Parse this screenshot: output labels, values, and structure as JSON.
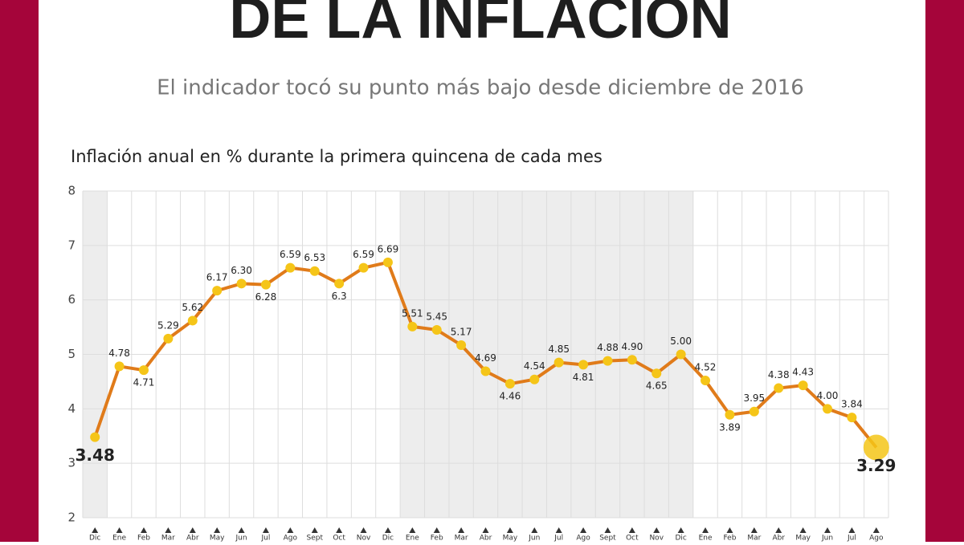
{
  "chart_data": {
    "type": "line",
    "title": "DE LA INFLACIÓN",
    "subtitle": "El indicador tocó su punto más bajo desde diciembre de 2016",
    "chart_title": "Inflación anual en % durante la primera quincena de cada mes",
    "categories": [
      "Dic",
      "Ene",
      "Feb",
      "Mar",
      "Abr",
      "May",
      "Jun",
      "Jul",
      "Ago",
      "Sept",
      "Oct",
      "Nov",
      "Dic",
      "Ene",
      "Feb",
      "Mar",
      "Abr",
      "May",
      "Jun",
      "Jul",
      "Ago",
      "Sept",
      "Oct",
      "Nov",
      "Dic",
      "Ene",
      "Feb",
      "Mar",
      "Abr",
      "May",
      "Jun",
      "Jul",
      "Ago"
    ],
    "values": [
      3.48,
      4.78,
      4.71,
      5.29,
      5.62,
      6.17,
      6.3,
      6.28,
      6.59,
      6.53,
      6.3,
      6.59,
      6.69,
      5.51,
      5.45,
      5.17,
      4.69,
      4.46,
      4.54,
      4.85,
      4.81,
      4.88,
      4.9,
      4.65,
      5.0,
      4.52,
      3.89,
      3.95,
      4.38,
      4.43,
      4.0,
      3.84,
      3.29
    ],
    "value_labels": [
      "3.48",
      "4.78",
      "4.71",
      "5.29",
      "5.62",
      "6.17",
      "6.30",
      "6.28",
      "6.59",
      "6.53",
      "6.3",
      "6.59",
      "6.69",
      "5.51",
      "5.45",
      "5.17",
      "4.69",
      "4.46",
      "4.54",
      "4.85",
      "4.81",
      "4.88",
      "4.90",
      "4.65",
      "5.00",
      "4.52",
      "3.89",
      "3.95",
      "4.38",
      "4.43",
      "4.00",
      "3.84",
      "3.29"
    ],
    "color": "#e07b1a",
    "marker_color": "#f5c518",
    "ylim": [
      2,
      8
    ],
    "yticks": [
      2,
      3,
      4,
      5,
      6,
      7,
      8
    ],
    "grid": true
  }
}
